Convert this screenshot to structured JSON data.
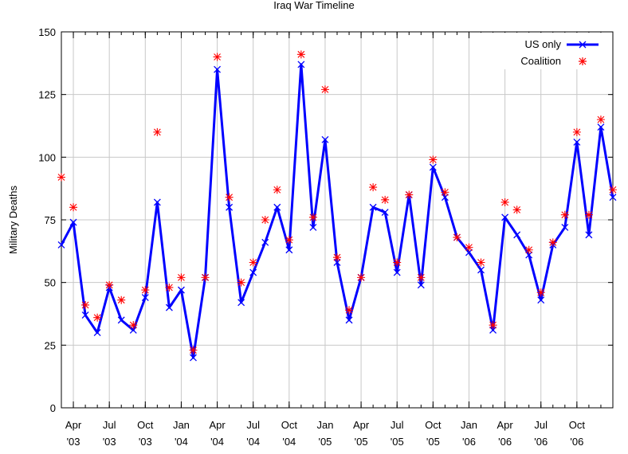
{
  "chart_data": {
    "type": "line",
    "title": "Iraq War Timeline",
    "xlabel": "",
    "ylabel": "Military Deaths",
    "ylim": [
      0,
      150
    ],
    "yticks": [
      0,
      25,
      50,
      75,
      100,
      125,
      150
    ],
    "x": [
      "Mar '03",
      "Apr '03",
      "May '03",
      "Jun '03",
      "Jul '03",
      "Aug '03",
      "Sep '03",
      "Oct '03",
      "Nov '03",
      "Dec '03",
      "Jan '04",
      "Feb '04",
      "Mar '04",
      "Apr '04",
      "May '04",
      "Jun '04",
      "Jul '04",
      "Aug '04",
      "Sep '04",
      "Oct '04",
      "Nov '04",
      "Dec '04",
      "Jan '05",
      "Feb '05",
      "Mar '05",
      "Apr '05",
      "May '05",
      "Jun '05",
      "Jul '05",
      "Aug '05",
      "Sep '05",
      "Oct '05",
      "Nov '05",
      "Dec '05",
      "Jan '06",
      "Feb '06",
      "Mar '06",
      "Apr '06",
      "May '06",
      "Jun '06",
      "Jul '06",
      "Aug '06",
      "Sep '06",
      "Oct '06",
      "Nov '06",
      "Dec '06",
      "Jan '07"
    ],
    "xticks": [
      {
        "index": 1,
        "month": "Apr",
        "year": "'03"
      },
      {
        "index": 4,
        "month": "Jul",
        "year": "'03"
      },
      {
        "index": 7,
        "month": "Oct",
        "year": "'03"
      },
      {
        "index": 10,
        "month": "Jan",
        "year": "'04"
      },
      {
        "index": 13,
        "month": "Apr",
        "year": "'04"
      },
      {
        "index": 16,
        "month": "Jul",
        "year": "'04"
      },
      {
        "index": 19,
        "month": "Oct",
        "year": "'04"
      },
      {
        "index": 22,
        "month": "Jan",
        "year": "'05"
      },
      {
        "index": 25,
        "month": "Apr",
        "year": "'05"
      },
      {
        "index": 28,
        "month": "Jul",
        "year": "'05"
      },
      {
        "index": 31,
        "month": "Oct",
        "year": "'05"
      },
      {
        "index": 34,
        "month": "Jan",
        "year": "'06"
      },
      {
        "index": 37,
        "month": "Apr",
        "year": "'06"
      },
      {
        "index": 40,
        "month": "Jul",
        "year": "'06"
      },
      {
        "index": 43,
        "month": "Oct",
        "year": "'06"
      }
    ],
    "series": [
      {
        "name": "US only",
        "color": "#0000ff",
        "style": "line-x",
        "values": [
          65,
          74,
          37,
          30,
          48,
          35,
          31,
          44,
          82,
          40,
          47,
          20,
          52,
          135,
          80,
          42,
          54,
          66,
          80,
          63,
          137,
          72,
          107,
          58,
          35,
          52,
          80,
          78,
          54,
          85,
          49,
          96,
          84,
          68,
          62,
          55,
          31,
          76,
          69,
          61,
          43,
          65,
          72,
          106,
          69,
          112,
          84
        ]
      },
      {
        "name": "Coalition",
        "color": "#ff0000",
        "style": "star",
        "values": [
          92,
          80,
          41,
          36,
          49,
          43,
          33,
          47,
          110,
          48,
          52,
          23,
          52,
          140,
          84,
          50,
          58,
          75,
          87,
          67,
          141,
          76,
          127,
          60,
          39,
          52,
          88,
          83,
          58,
          85,
          52,
          99,
          86,
          68,
          64,
          58,
          33,
          82,
          79,
          63,
          46,
          66,
          77,
          110,
          77,
          115,
          87
        ]
      }
    ],
    "grid": true,
    "legend": "top-right"
  }
}
